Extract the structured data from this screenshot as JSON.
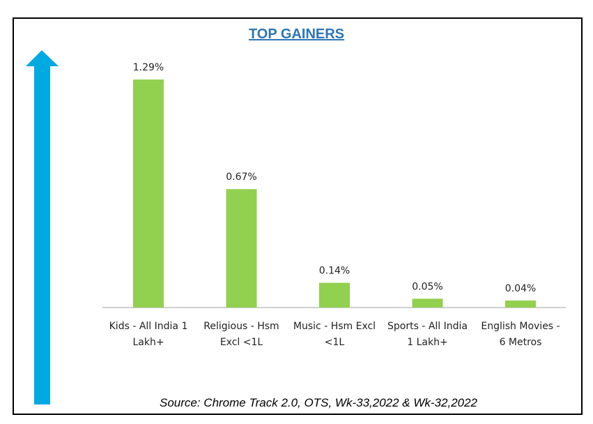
{
  "chart_data": {
    "type": "bar",
    "title": "TOP GAINERS",
    "categories": [
      [
        "Kids - All India 1",
        "Lakh+"
      ],
      [
        "Religious - Hsm",
        "Excl <1L"
      ],
      [
        "Music - Hsm Excl",
        "<1L"
      ],
      [
        "Sports - All India",
        "1 Lakh+"
      ],
      [
        "English Movies -",
        "6 Metros"
      ]
    ],
    "values": [
      1.29,
      0.67,
      0.14,
      0.05,
      0.04
    ],
    "data_labels": [
      "1.29%",
      "0.67%",
      "0.14%",
      "0.05%",
      "0.04%"
    ],
    "ylim": [
      0,
      1.29
    ],
    "grid": false,
    "legend": "none",
    "bar_color": "#92d050",
    "arrow_color": "#00a9e0",
    "source": "Source: Chrome Track 2.0, OTS, Wk-33,2022 & Wk-32,2022"
  }
}
